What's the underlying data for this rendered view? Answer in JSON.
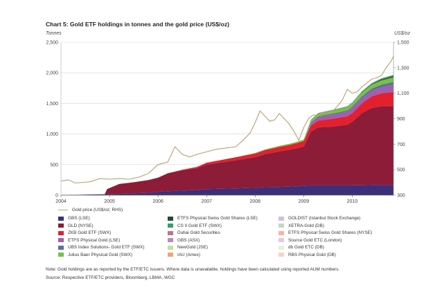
{
  "title": "Chart 5: Gold ETF holdings in tonnes and the gold price (US$/oz)",
  "left_unit": "Tonnes",
  "right_unit": "US$/oz",
  "note": "Note: Gold holdings are as reported by the ETF/ETC issuers. Where data is unavailable, holdings have been calculated using reported AUM numbers.",
  "source": "Source: Respective ETF/ETC providers, Bloomberg, LBMA, WGC",
  "chart_data": {
    "type": "area",
    "x_ticks": [
      "2004",
      "2005",
      "2006",
      "2007",
      "2008",
      "2009",
      "2010"
    ],
    "x_range": [
      2004.0,
      2010.85
    ],
    "y_left": {
      "label": "Tonnes",
      "range": [
        0,
        2500
      ],
      "ticks": [
        "0",
        "500",
        "1,000",
        "1,500",
        "2,000",
        "2,500"
      ]
    },
    "y_right": {
      "label": "US$/oz",
      "range": [
        300,
        1500
      ],
      "ticks": [
        "300",
        "500",
        "700",
        "900",
        "1,100",
        "1,300",
        "1,500"
      ]
    },
    "grid": true,
    "legend_position": "bottom",
    "x": [
      2004.0,
      2004.3,
      2004.6,
      2004.9,
      2004.95,
      2005.2,
      2005.5,
      2005.8,
      2006.0,
      2006.2,
      2006.5,
      2006.8,
      2007.0,
      2007.3,
      2007.6,
      2007.8,
      2008.0,
      2008.2,
      2008.5,
      2008.7,
      2008.85,
      2009.0,
      2009.15,
      2009.3,
      2009.6,
      2009.9,
      2010.0,
      2010.2,
      2010.4,
      2010.6,
      2010.85
    ],
    "series": [
      {
        "name": "GBS (LSE)",
        "color": "#3b2f7a",
        "values": [
          0,
          5,
          10,
          15,
          18,
          22,
          30,
          40,
          55,
          65,
          75,
          85,
          100,
          105,
          110,
          115,
          120,
          130,
          135,
          140,
          145,
          155,
          160,
          160,
          160,
          160,
          160,
          162,
          165,
          165,
          165
        ]
      },
      {
        "name": "GLD (NYSE)",
        "color": "#8c1c38",
        "values": [
          0,
          0,
          0,
          0,
          80,
          160,
          180,
          205,
          230,
          290,
          330,
          355,
          400,
          430,
          460,
          480,
          500,
          540,
          580,
          600,
          620,
          640,
          880,
          950,
          960,
          990,
          1040,
          1180,
          1260,
          1290,
          1290
        ]
      },
      {
        "name": "ZKB Gold ETF (SWX)",
        "color": "#e3202e",
        "values": [
          0,
          0,
          0,
          0,
          0,
          0,
          0,
          0,
          0,
          5,
          10,
          20,
          30,
          40,
          50,
          55,
          60,
          65,
          75,
          80,
          85,
          90,
          100,
          110,
          130,
          140,
          140,
          160,
          190,
          210,
          230
        ]
      },
      {
        "name": "ETFS Physical Gold (LSE)",
        "color": "#a15fb0",
        "values": [
          0,
          0,
          0,
          0,
          0,
          0,
          0,
          0,
          0,
          0,
          0,
          0,
          0,
          0,
          0,
          0,
          0,
          0,
          0,
          0,
          0,
          0,
          40,
          55,
          65,
          75,
          80,
          85,
          90,
          100,
          120
        ]
      },
      {
        "name": "UBS Index Solutions- Gold ETF (SWX)",
        "color": "#57729b",
        "values": [
          0,
          0,
          0,
          0,
          0,
          0,
          0,
          0,
          0,
          0,
          0,
          0,
          0,
          0,
          0,
          0,
          0,
          0,
          0,
          0,
          0,
          0,
          10,
          15,
          20,
          20,
          25,
          30,
          35,
          40,
          45
        ]
      },
      {
        "name": "Julius Baer Physical Gold (SWX)",
        "color": "#7ac043",
        "values": [
          0,
          0,
          0,
          0,
          0,
          0,
          0,
          0,
          0,
          0,
          0,
          0,
          0,
          0,
          0,
          5,
          10,
          12,
          15,
          18,
          20,
          25,
          40,
          45,
          50,
          55,
          58,
          62,
          65,
          70,
          75
        ]
      },
      {
        "name": "ETFS Physical Swiss Gold Shares (LSE)",
        "color": "#1e4d2b",
        "values": [
          0,
          0,
          0,
          0,
          0,
          0,
          0,
          0,
          0,
          0,
          0,
          0,
          0,
          0,
          0,
          0,
          0,
          0,
          0,
          0,
          0,
          0,
          0,
          0,
          0,
          0,
          0,
          5,
          10,
          15,
          20
        ]
      },
      {
        "name": "CS II Gold ETF (SWX)",
        "color": "#3f9a6e",
        "values": [
          0,
          0,
          0,
          0,
          0,
          0,
          0,
          0,
          0,
          0,
          0,
          0,
          0,
          0,
          0,
          0,
          0,
          0,
          0,
          0,
          0,
          0,
          5,
          8,
          10,
          12,
          12,
          14,
          15,
          18,
          20
        ]
      },
      {
        "name": "Dubai Gold Securities",
        "color": "#c77089",
        "values": [
          0,
          0,
          0,
          0,
          0,
          0,
          0,
          0,
          0,
          0,
          0,
          0,
          0,
          0,
          0,
          0,
          0,
          0,
          0,
          0,
          0,
          0,
          0,
          0,
          0,
          0,
          0,
          0,
          0,
          0,
          0
        ]
      },
      {
        "name": "GBS (ASX)",
        "color": "#b58ec1",
        "values": [
          0,
          0,
          0,
          0,
          0,
          0,
          0,
          0,
          0,
          0,
          0,
          0,
          0,
          0,
          0,
          0,
          0,
          0,
          0,
          0,
          0,
          0,
          0,
          0,
          0,
          0,
          0,
          0,
          0,
          0,
          0
        ]
      },
      {
        "name": "NewGold (JSE)",
        "color": "#c7df9b",
        "values": [
          0,
          0,
          0,
          0,
          0,
          0,
          0,
          0,
          0,
          0,
          0,
          0,
          0,
          0,
          0,
          0,
          0,
          0,
          0,
          0,
          0,
          0,
          0,
          0,
          0,
          0,
          0,
          0,
          0,
          0,
          0
        ]
      },
      {
        "name": "IAU (Amex)",
        "color": "#f0a37a",
        "values": [
          0,
          0,
          0,
          0,
          0,
          0,
          0,
          0,
          0,
          0,
          0,
          0,
          0,
          0,
          0,
          0,
          0,
          0,
          0,
          0,
          0,
          0,
          0,
          0,
          0,
          0,
          0,
          0,
          0,
          0,
          0
        ]
      },
      {
        "name": "GOLDIST (Istanbul Stock Exchange)",
        "color": "#d3bfdc",
        "values": [
          0,
          0,
          0,
          0,
          0,
          0,
          0,
          0,
          0,
          0,
          0,
          0,
          0,
          0,
          0,
          0,
          0,
          0,
          0,
          0,
          0,
          0,
          0,
          0,
          0,
          0,
          0,
          0,
          0,
          0,
          0
        ]
      },
      {
        "name": "XETRA-Gold (DB)",
        "color": "#c5d8c1",
        "values": [
          0,
          0,
          0,
          0,
          0,
          0,
          0,
          0,
          0,
          0,
          0,
          0,
          0,
          0,
          0,
          0,
          0,
          0,
          0,
          0,
          0,
          0,
          0,
          0,
          0,
          0,
          0,
          0,
          0,
          0,
          0
        ]
      },
      {
        "name": "ETFS Physical Swiss Gold Shares (NYSE)",
        "color": "#f4b6a3",
        "values": [
          0,
          0,
          0,
          0,
          0,
          0,
          0,
          0,
          0,
          0,
          0,
          0,
          0,
          0,
          0,
          0,
          0,
          0,
          0,
          0,
          0,
          0,
          0,
          0,
          0,
          0,
          0,
          0,
          0,
          0,
          0
        ]
      },
      {
        "name": "Source Gold ETC (London)",
        "color": "#e4c8e6",
        "values": [
          0,
          0,
          0,
          0,
          0,
          0,
          0,
          0,
          0,
          0,
          0,
          0,
          0,
          0,
          0,
          0,
          0,
          0,
          0,
          0,
          0,
          0,
          0,
          0,
          0,
          0,
          0,
          0,
          0,
          0,
          0
        ]
      },
      {
        "name": "db Gold ETC (DB)",
        "color": "#eaf0d7",
        "values": [
          0,
          0,
          0,
          0,
          0,
          0,
          0,
          0,
          0,
          0,
          0,
          0,
          0,
          0,
          0,
          0,
          0,
          0,
          0,
          0,
          0,
          0,
          0,
          0,
          0,
          0,
          0,
          0,
          0,
          0,
          0
        ]
      },
      {
        "name": "RBS Physical Gold (DB)",
        "color": "#f7d2c6",
        "values": [
          0,
          0,
          0,
          0,
          0,
          0,
          0,
          0,
          0,
          0,
          0,
          0,
          0,
          0,
          0,
          0,
          0,
          0,
          0,
          0,
          0,
          0,
          0,
          0,
          0,
          0,
          0,
          0,
          0,
          0,
          0
        ]
      }
    ],
    "price_series": {
      "name": "Gold price (US$/oz; RHS)",
      "color": "#b7a071",
      "x": [
        2004.0,
        2004.15,
        2004.3,
        2004.45,
        2004.6,
        2004.8,
        2005.0,
        2005.2,
        2005.4,
        2005.6,
        2005.8,
        2006.0,
        2006.2,
        2006.35,
        2006.5,
        2006.65,
        2006.8,
        2007.0,
        2007.2,
        2007.4,
        2007.6,
        2007.75,
        2007.9,
        2008.0,
        2008.1,
        2008.2,
        2008.3,
        2008.4,
        2008.5,
        2008.6,
        2008.7,
        2008.8,
        2008.9,
        2009.0,
        2009.1,
        2009.2,
        2009.3,
        2009.4,
        2009.5,
        2009.6,
        2009.7,
        2009.8,
        2009.9,
        2010.0,
        2010.1,
        2010.2,
        2010.3,
        2010.4,
        2010.5,
        2010.6,
        2010.7,
        2010.8,
        2010.85
      ],
      "values": [
        410,
        420,
        395,
        400,
        405,
        430,
        425,
        430,
        425,
        440,
        470,
        540,
        560,
        680,
        620,
        600,
        620,
        640,
        660,
        670,
        680,
        730,
        790,
        870,
        960,
        920,
        880,
        890,
        940,
        900,
        860,
        800,
        730,
        830,
        900,
        930,
        920,
        950,
        935,
        960,
        1000,
        1050,
        1130,
        1100,
        1110,
        1150,
        1180,
        1210,
        1220,
        1240,
        1300,
        1350,
        1390
      ]
    }
  }
}
